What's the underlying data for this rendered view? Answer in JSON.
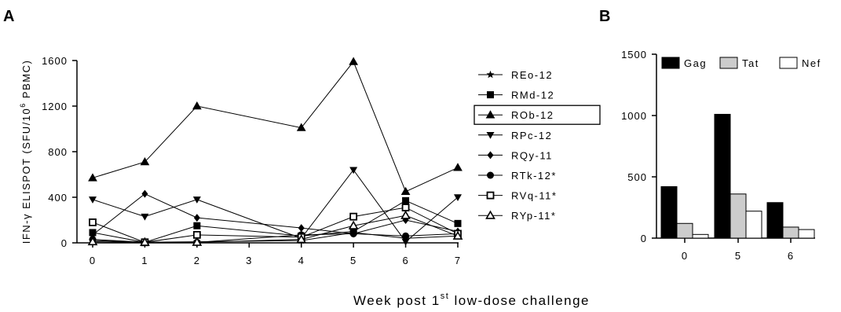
{
  "figure": {
    "panel_a_letter": "A",
    "panel_b_letter": "B",
    "shared_xlabel_prefix": "Week post 1",
    "shared_xlabel_sup": "st",
    "shared_xlabel_suffix": " low-dose challenge"
  },
  "chart_data": [
    {
      "panel": "A",
      "type": "line",
      "ylabel_prefix": "IFN-γ ELISPOT (SFU/10",
      "ylabel_sup": "6",
      "ylabel_suffix": " PBMC)",
      "xlabel": "Week post 1st low-dose challenge",
      "x_ticks": [
        "0",
        "1",
        "2",
        "3",
        "4",
        "5",
        "6",
        "7"
      ],
      "y_ticks": [
        "0",
        "400",
        "800",
        "1200",
        "1600"
      ],
      "xlim": [
        0,
        7
      ],
      "ylim": [
        0,
        1600
      ],
      "boxed_legend_entry": "ROb-12",
      "series": [
        {
          "name": "REo-12",
          "marker": "star",
          "x": [
            0,
            1,
            2,
            4,
            5,
            6,
            7
          ],
          "y": [
            20,
            5,
            10,
            20,
            90,
            40,
            60
          ]
        },
        {
          "name": "RMd-12",
          "marker": "square-filled",
          "x": [
            0,
            1,
            2,
            4,
            5,
            6,
            7
          ],
          "y": [
            90,
            5,
            150,
            60,
            100,
            370,
            170
          ]
        },
        {
          "name": "ROb-12",
          "marker": "triangle-up-filled",
          "x": [
            0,
            1,
            2,
            4,
            5,
            6,
            7
          ],
          "y": [
            570,
            710,
            1200,
            1010,
            1590,
            450,
            660
          ]
        },
        {
          "name": "RPc-12",
          "marker": "triangle-down-filled",
          "x": [
            0,
            1,
            2,
            4,
            5,
            6,
            7
          ],
          "y": [
            380,
            230,
            380,
            40,
            640,
            10,
            400
          ]
        },
        {
          "name": "RQy-11",
          "marker": "diamond-filled",
          "x": [
            0,
            1,
            2,
            4,
            5,
            6,
            7
          ],
          "y": [
            70,
            430,
            220,
            130,
            80,
            200,
            100
          ]
        },
        {
          "name": "RTk-12*",
          "marker": "circle-filled",
          "x": [
            0,
            1,
            2,
            4,
            5,
            6,
            7
          ],
          "y": [
            30,
            5,
            5,
            70,
            80,
            60,
            80
          ]
        },
        {
          "name": "RVq-11*",
          "marker": "square-open",
          "x": [
            0,
            1,
            2,
            4,
            5,
            6,
            7
          ],
          "y": [
            180,
            5,
            70,
            50,
            230,
            310,
            80
          ]
        },
        {
          "name": "RYp-11*",
          "marker": "triangle-up-open",
          "x": [
            0,
            1,
            2,
            4,
            5,
            6,
            7
          ],
          "y": [
            10,
            5,
            5,
            30,
            150,
            240,
            60
          ]
        }
      ]
    },
    {
      "panel": "B",
      "type": "bar",
      "categories": [
        "0",
        "5",
        "6"
      ],
      "y_ticks": [
        "0",
        "500",
        "1000",
        "1500"
      ],
      "ylim": [
        0,
        1500
      ],
      "legend_position": "top",
      "series": [
        {
          "name": "Gag",
          "color": "#000000",
          "values": [
            420,
            1010,
            290
          ]
        },
        {
          "name": "Tat",
          "color": "#cccccc",
          "values": [
            120,
            360,
            90
          ]
        },
        {
          "name": "Nef",
          "color": "#ffffff",
          "values": [
            30,
            220,
            70
          ]
        }
      ]
    }
  ]
}
